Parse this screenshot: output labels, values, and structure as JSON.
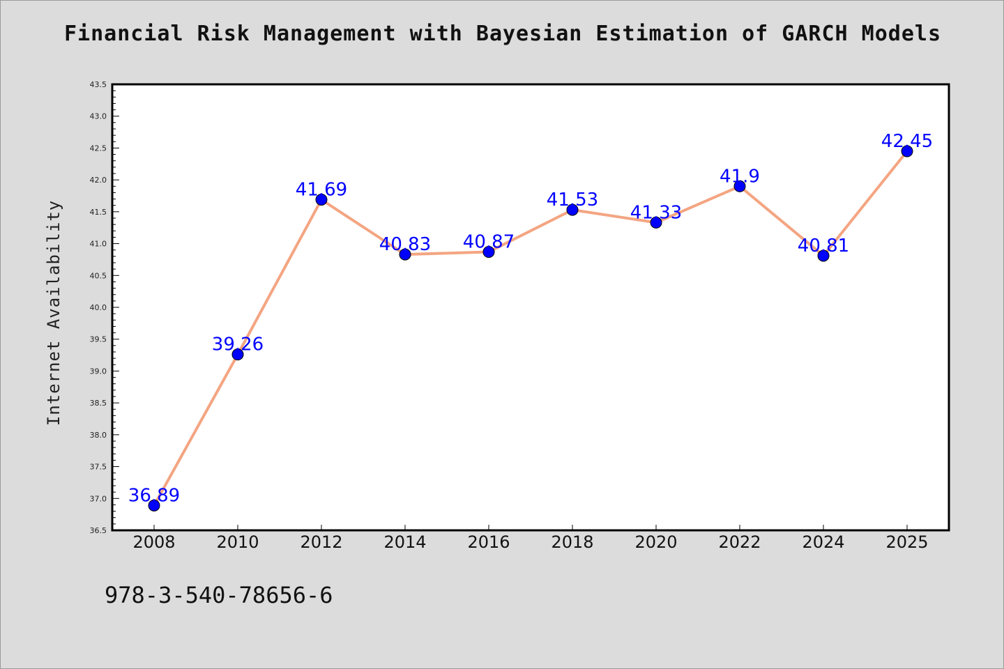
{
  "chart_data": {
    "type": "line",
    "title": "Financial Risk Management with Bayesian Estimation of GARCH Models",
    "xlabel": "",
    "ylabel": "Internet Availability",
    "categories": [
      "2008",
      "2010",
      "2012",
      "2014",
      "2016",
      "2018",
      "2020",
      "2022",
      "2024",
      "2025"
    ],
    "series": [
      {
        "values": [
          36.89,
          39.26,
          41.69,
          40.83,
          40.87,
          41.53,
          41.33,
          41.9,
          40.81,
          42.45
        ],
        "labels": [
          "36.89",
          "39.26",
          "41.69",
          "40.83",
          "40.87",
          "41.53",
          "41.33",
          "41.9",
          "40.81",
          "42.45"
        ]
      }
    ],
    "ylim": [
      36.5,
      43.5
    ],
    "y_major_ticks": [
      "36.5",
      "37.0",
      "37.5",
      "38.0",
      "38.5",
      "39.0",
      "39.5",
      "40.0",
      "40.5",
      "41.0",
      "41.5",
      "42.0",
      "42.5",
      "43.0",
      "43.5"
    ],
    "grid": false,
    "line_color": "#f4a582",
    "marker_color": "#0000ff",
    "label_color": "#0000ff"
  },
  "footer": {
    "code": "978-3-540-78656-6"
  }
}
